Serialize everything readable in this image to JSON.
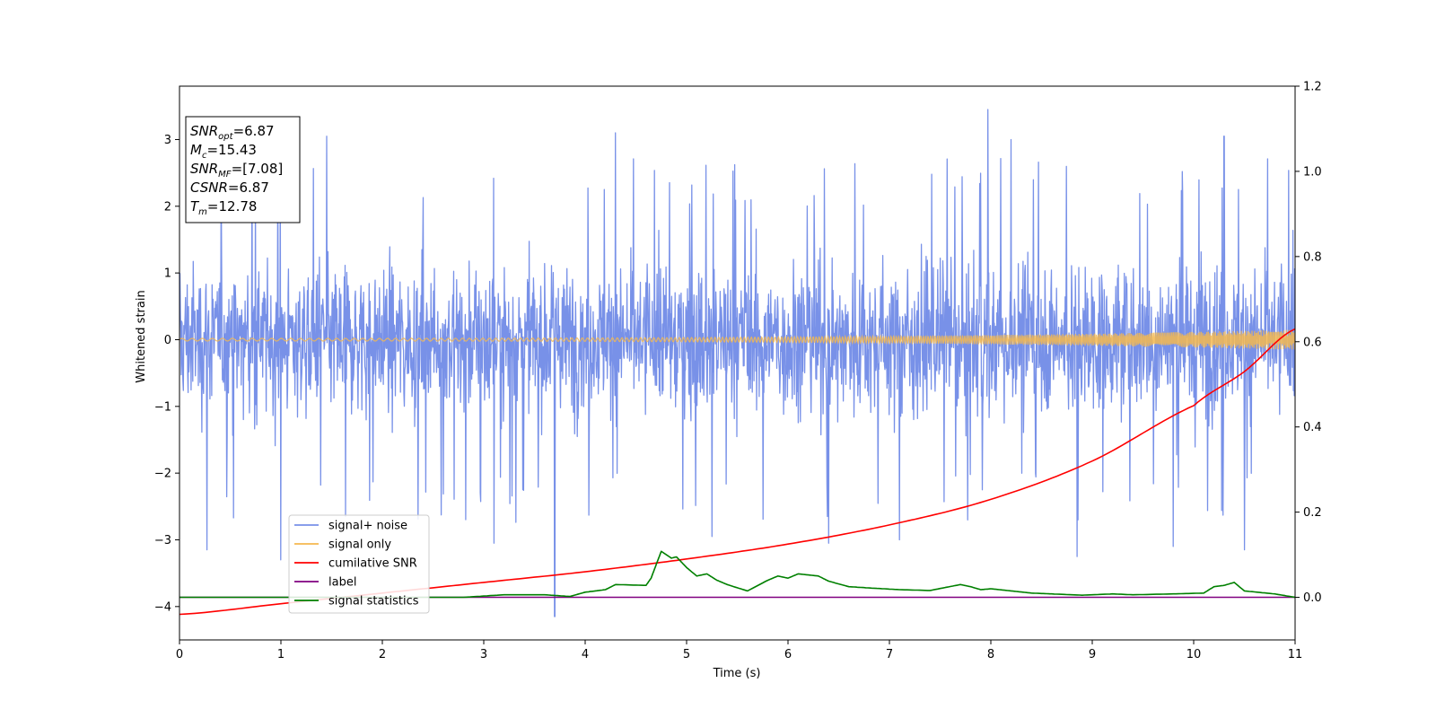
{
  "chart_data": {
    "type": "line",
    "xlabel": "Time (s)",
    "ylabel": "Whitened strain",
    "xlim": [
      0,
      11
    ],
    "ylim_left": [
      -4.5,
      3.8
    ],
    "ylim_right": [
      -0.1,
      1.2
    ],
    "x_ticks": [
      "0",
      "1",
      "2",
      "3",
      "4",
      "5",
      "6",
      "7",
      "8",
      "9",
      "10",
      "11"
    ],
    "y_ticks_left": [
      "3",
      "2",
      "1",
      "0",
      "−1",
      "−2",
      "−3",
      "−4"
    ],
    "y_ticks_right": [
      "1.2",
      "1.0",
      "0.8",
      "0.6",
      "0.4",
      "0.2",
      "0.0"
    ],
    "annotation": [
      {
        "name": "SNR",
        "sub": "opt",
        "value": "=6.87"
      },
      {
        "name": "M",
        "sub": "c",
        "value": "=15.43"
      },
      {
        "name": "SNR",
        "sub": "MF",
        "value": "=[7.08]"
      },
      {
        "name": "CSNR",
        "sub": "",
        "value": "=6.87"
      },
      {
        "name": "T",
        "sub": "m",
        "value": "=12.78"
      }
    ],
    "legend_position": "lower left",
    "series": [
      {
        "name": "signal+ noise",
        "axis": "left",
        "color": "#7891e8",
        "style": "noise",
        "spread": 0.55,
        "extremes": [
          [
            0.27,
            -3.15
          ],
          [
            1.0,
            -3.3
          ],
          [
            1.45,
            3.05
          ],
          [
            3.1,
            -3.05
          ],
          [
            3.7,
            -4.15
          ],
          [
            4.3,
            3.1
          ],
          [
            5.25,
            -2.95
          ],
          [
            6.4,
            -3.05
          ],
          [
            7.1,
            -3.0
          ],
          [
            7.97,
            3.45
          ],
          [
            8.2,
            3.0
          ],
          [
            8.85,
            -3.25
          ],
          [
            9.8,
            -3.1
          ],
          [
            10.3,
            3.05
          ],
          [
            10.5,
            -3.15
          ]
        ]
      },
      {
        "name": "signal only",
        "axis": "left",
        "color": "#f5b84f",
        "style": "chirp",
        "amp_start": 0.02,
        "amp_end": 0.15
      },
      {
        "name": "cumilative SNR",
        "axis": "right",
        "color": "#ff0000",
        "x": [
          0,
          1,
          2,
          3,
          4,
          5,
          6,
          7,
          8,
          9,
          10,
          10.5,
          11
        ],
        "y": [
          -0.04,
          -0.015,
          0.01,
          0.035,
          0.06,
          0.09,
          0.125,
          0.17,
          0.23,
          0.32,
          0.45,
          0.53,
          0.63
        ]
      },
      {
        "name": "label",
        "axis": "right",
        "color": "#800080",
        "x": [
          0,
          11
        ],
        "y": [
          0.0,
          0.0
        ]
      },
      {
        "name": "signal statistics",
        "axis": "right",
        "color": "#008000",
        "x": [
          0,
          1,
          2,
          2.8,
          3.2,
          3.6,
          3.85,
          4.0,
          4.2,
          4.3,
          4.6,
          4.65,
          4.75,
          4.85,
          4.9,
          5.0,
          5.1,
          5.2,
          5.3,
          5.4,
          5.6,
          5.8,
          5.9,
          6.0,
          6.1,
          6.3,
          6.4,
          6.6,
          6.8,
          7.1,
          7.4,
          7.7,
          7.8,
          7.9,
          8.0,
          8.2,
          8.4,
          8.6,
          8.9,
          9.2,
          9.4,
          9.8,
          10.1,
          10.2,
          10.3,
          10.4,
          10.5,
          10.8,
          11
        ],
        "y": [
          0.0,
          0.0,
          0.0,
          0.0,
          0.006,
          0.006,
          0.002,
          0.012,
          0.018,
          0.03,
          0.028,
          0.045,
          0.108,
          0.092,
          0.095,
          0.07,
          0.05,
          0.055,
          0.04,
          0.03,
          0.015,
          0.04,
          0.05,
          0.045,
          0.055,
          0.05,
          0.038,
          0.025,
          0.022,
          0.018,
          0.016,
          0.03,
          0.025,
          0.018,
          0.02,
          0.015,
          0.01,
          0.008,
          0.005,
          0.008,
          0.006,
          0.008,
          0.01,
          0.025,
          0.028,
          0.035,
          0.015,
          0.008,
          0.0
        ]
      }
    ]
  }
}
